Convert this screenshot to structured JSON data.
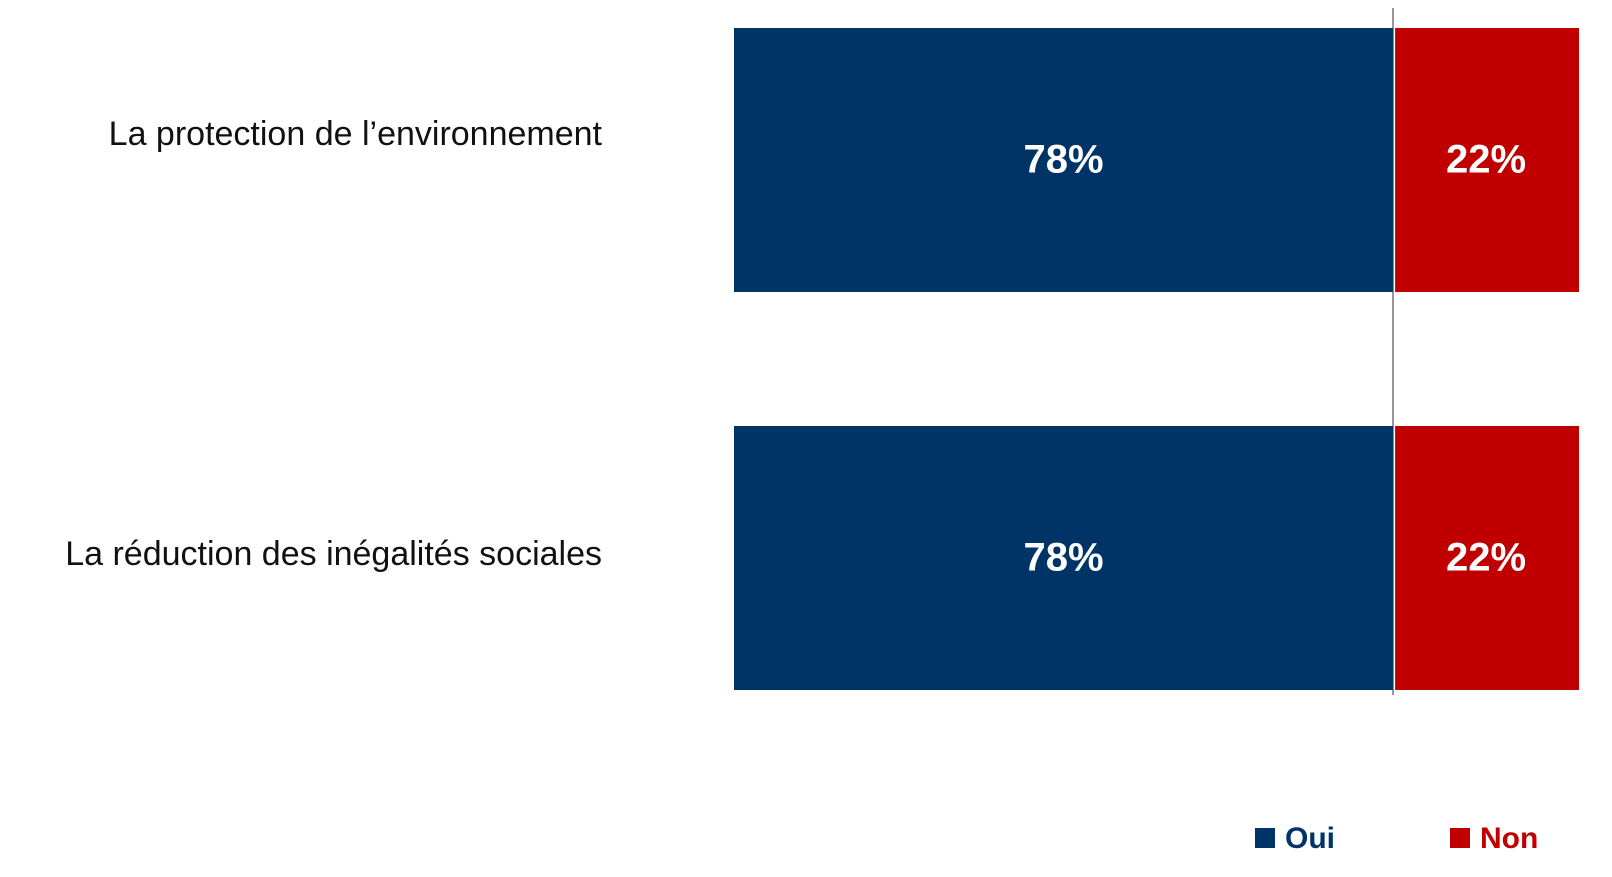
{
  "chart_data": {
    "type": "stacked_barh",
    "categories": [
      "La protection de l’environnement",
      "La réduction des inégalités sociales"
    ],
    "series": [
      {
        "name": "Oui",
        "color": "#003466",
        "values": [
          78,
          78
        ],
        "value_labels": [
          "78%",
          "78%"
        ]
      },
      {
        "name": "Non",
        "color": "#c00000",
        "values": [
          22,
          22
        ],
        "value_labels": [
          "22%",
          "22%"
        ]
      }
    ],
    "xlim": [
      0,
      100
    ]
  }
}
